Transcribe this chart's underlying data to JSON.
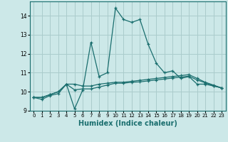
{
  "xlabel": "Humidex (Indice chaleur)",
  "background_color": "#cce8e8",
  "line_color": "#1a6e6e",
  "grid_color": "#aacccc",
  "x": [
    0,
    1,
    2,
    3,
    4,
    5,
    6,
    7,
    8,
    9,
    10,
    11,
    12,
    13,
    14,
    15,
    16,
    17,
    18,
    19,
    20,
    21,
    22,
    23
  ],
  "line1": [
    9.7,
    9.6,
    9.8,
    9.9,
    10.4,
    9.1,
    10.1,
    12.6,
    10.8,
    11.0,
    14.4,
    13.8,
    13.65,
    13.8,
    12.5,
    11.5,
    11.0,
    11.1,
    10.7,
    10.8,
    10.4,
    10.4,
    10.3,
    10.2
  ],
  "line2": [
    9.7,
    9.7,
    9.85,
    10.0,
    10.4,
    10.4,
    10.3,
    10.3,
    10.4,
    10.45,
    10.5,
    10.5,
    10.55,
    10.6,
    10.65,
    10.7,
    10.75,
    10.8,
    10.85,
    10.9,
    10.7,
    10.5,
    10.35,
    10.2
  ],
  "line3": [
    9.7,
    9.7,
    9.85,
    10.0,
    10.4,
    10.1,
    10.15,
    10.15,
    10.25,
    10.35,
    10.45,
    10.45,
    10.5,
    10.52,
    10.57,
    10.62,
    10.67,
    10.72,
    10.77,
    10.82,
    10.62,
    10.47,
    10.32,
    10.2
  ],
  "ylim": [
    9.0,
    14.75
  ],
  "yticks": [
    9,
    10,
    11,
    12,
    13,
    14
  ],
  "xtick_labels": [
    "0",
    "1",
    "2",
    "3",
    "4",
    "5",
    "6",
    "7",
    "8",
    "9",
    "10",
    "11",
    "12",
    "13",
    "14",
    "15",
    "16",
    "17",
    "18",
    "19",
    "20",
    "21",
    "22",
    "23"
  ]
}
